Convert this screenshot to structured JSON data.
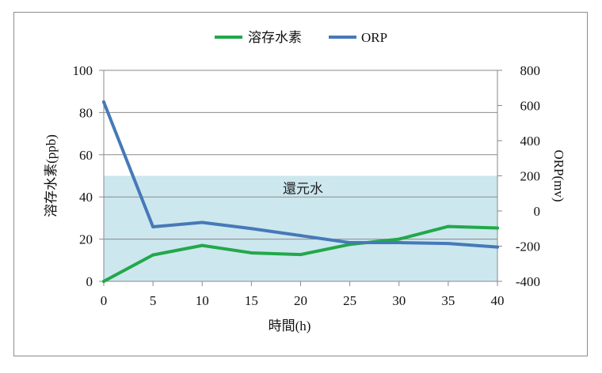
{
  "chart_data": {
    "type": "line",
    "x": [
      0,
      5,
      10,
      15,
      20,
      25,
      30,
      35,
      40
    ],
    "xlabel": "時間(h)",
    "ylabel": "溶存水素(ppb)",
    "y2label": "ORP(mv)",
    "ylim": [
      0,
      100
    ],
    "y2lim": [
      -400,
      800
    ],
    "xlim": [
      0,
      40
    ],
    "yticks": [
      "0",
      "20",
      "40",
      "60",
      "80",
      "100"
    ],
    "y2ticks": [
      "-400",
      "-200",
      "0",
      "200",
      "400",
      "600",
      "800"
    ],
    "xticks": [
      "0",
      "5",
      "10",
      "15",
      "20",
      "25",
      "30",
      "35",
      "40"
    ],
    "grid": true,
    "legend_position": "top-center",
    "band": {
      "label": "還元水",
      "y_from": 0,
      "y_to": 50,
      "color": "#cce7ee"
    },
    "series": [
      {
        "name": "溶存水素",
        "axis": "left",
        "color": "#22a84a",
        "values": [
          0,
          12.5,
          17,
          13.5,
          12.7,
          17.5,
          20,
          26,
          25.3
        ]
      },
      {
        "name": "ORP",
        "axis": "right",
        "color": "#4679b8",
        "values": [
          620,
          -90,
          -65,
          -100,
          -140,
          -180,
          -180,
          -185,
          -205
        ]
      }
    ]
  }
}
